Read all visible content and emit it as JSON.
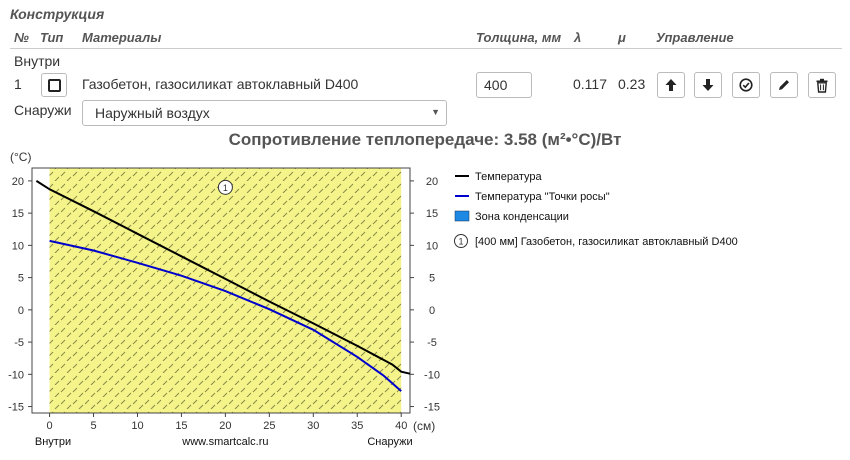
{
  "section_title": "Конструкция",
  "headers": {
    "num": "№",
    "type": "Тип",
    "materials": "Материалы",
    "thickness": "Толщина, мм",
    "lambda": "λ",
    "mu": "μ",
    "control": "Управление"
  },
  "inside_label": "Внутри",
  "outside_label": "Снаружи",
  "layer": {
    "num": "1",
    "material": "Газобетон, газосиликат автоклавный D400",
    "thickness": "400",
    "lambda": "0.117",
    "mu": "0.23"
  },
  "controls": [
    "arrow-up-icon",
    "arrow-down-icon",
    "check-circle-icon",
    "pencil-icon",
    "trash-icon"
  ],
  "outside_select": "Наружный воздух",
  "resistance": "Сопротивление теплопередаче: 3.58 (м²•°C)/Вт",
  "chart_data": {
    "type": "line",
    "ylabel": "(°C)",
    "xlabel_unit": "(см)",
    "x_left_label": "Внутри",
    "x_center_label": "www.smartcalc.ru",
    "x_right_label": "Снаружи",
    "xlim": [
      -2,
      41
    ],
    "ylim": [
      -16,
      22
    ],
    "x_ticks": [
      0,
      5,
      10,
      15,
      20,
      25,
      30,
      35,
      40
    ],
    "y_ticks": [
      20,
      15,
      10,
      5,
      0,
      -5,
      -10,
      -15
    ],
    "layer_zone": {
      "from": 0,
      "to": 40,
      "marker": "1",
      "fill": "#f4f48a"
    },
    "series": [
      {
        "name": "Температура",
        "color": "#000000",
        "x": [
          -1.5,
          0,
          5,
          10,
          15,
          20,
          25,
          30,
          35,
          39,
          40,
          41
        ],
        "y": [
          20,
          18.7,
          15.3,
          11.8,
          8.3,
          4.8,
          1.3,
          -2.1,
          -5.6,
          -8.5,
          -9.6,
          -9.9
        ]
      },
      {
        "name": "Температура \"Точки росы\"",
        "color": "#0000cc",
        "x": [
          0,
          5,
          10,
          15,
          20,
          25,
          30,
          35,
          38,
          40
        ],
        "y": [
          10.7,
          9.2,
          7.3,
          5.3,
          2.9,
          0.1,
          -3.1,
          -7.3,
          -10.2,
          -12.6
        ]
      }
    ],
    "legend": [
      "Температура",
      "Температура \"Точки росы\"",
      "Зона конденсации"
    ],
    "condensation_color": "#1e88e5",
    "layer_legend": {
      "marker": "1",
      "text": "[400 мм] Газобетон, газосиликат автоклавный D400"
    }
  }
}
